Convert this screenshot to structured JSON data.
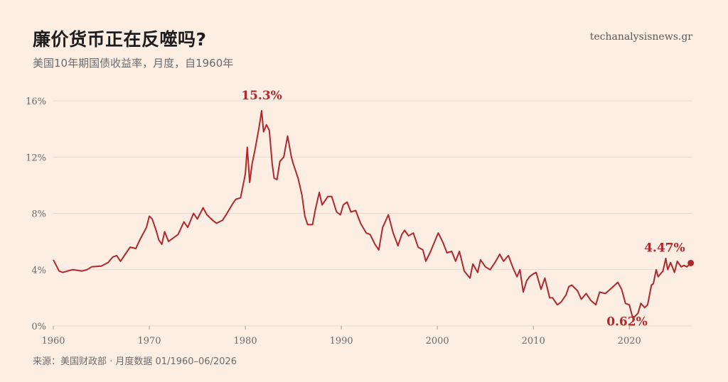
{
  "header": {
    "title": "廉价货币正在反噬吗?",
    "subtitle": "美国10年期国债收益率，月度，自1960年",
    "site": "techanalysisnews.gr"
  },
  "footer": {
    "source": "来源：美国财政部 · 月度数据 01/1960–06/2026"
  },
  "colors": {
    "background": "#fdeee4",
    "line": "#b0282c",
    "grid": "#ead8cc",
    "text": "#6b6b6b"
  },
  "chart_data": {
    "type": "line",
    "title": "廉价货币正在反噬吗?",
    "subtitle": "美国10年期国债收益率，月度，自1960年",
    "xlabel": "",
    "ylabel": "",
    "xlim": [
      1960,
      2026.5
    ],
    "ylim": [
      0,
      16
    ],
    "x_ticks": [
      1960,
      1970,
      1980,
      1990,
      2000,
      2010,
      2020
    ],
    "y_ticks": [
      0,
      4,
      8,
      12,
      16
    ],
    "y_tick_labels": [
      "0%",
      "4%",
      "8%",
      "12%",
      "16%"
    ],
    "grid": true,
    "series": [
      {
        "points": [
          [
            1960.0,
            4.7
          ],
          [
            1960.3,
            4.3
          ],
          [
            1960.6,
            3.9
          ],
          [
            1961.0,
            3.8
          ],
          [
            1961.5,
            3.9
          ],
          [
            1962.0,
            4.0
          ],
          [
            1962.5,
            3.95
          ],
          [
            1963.0,
            3.9
          ],
          [
            1963.5,
            4.0
          ],
          [
            1964.0,
            4.2
          ],
          [
            1965.0,
            4.25
          ],
          [
            1965.7,
            4.5
          ],
          [
            1966.2,
            4.9
          ],
          [
            1966.6,
            5.0
          ],
          [
            1967.0,
            4.6
          ],
          [
            1967.6,
            5.2
          ],
          [
            1968.0,
            5.6
          ],
          [
            1968.6,
            5.5
          ],
          [
            1969.0,
            6.1
          ],
          [
            1969.7,
            7.0
          ],
          [
            1970.0,
            7.8
          ],
          [
            1970.3,
            7.6
          ],
          [
            1970.7,
            6.8
          ],
          [
            1971.0,
            6.1
          ],
          [
            1971.3,
            5.8
          ],
          [
            1971.6,
            6.7
          ],
          [
            1972.0,
            6.0
          ],
          [
            1972.6,
            6.3
          ],
          [
            1973.0,
            6.5
          ],
          [
            1973.6,
            7.4
          ],
          [
            1974.0,
            7.0
          ],
          [
            1974.6,
            8.0
          ],
          [
            1975.0,
            7.6
          ],
          [
            1975.6,
            8.4
          ],
          [
            1976.0,
            7.9
          ],
          [
            1976.6,
            7.5
          ],
          [
            1977.0,
            7.3
          ],
          [
            1977.6,
            7.5
          ],
          [
            1978.0,
            7.9
          ],
          [
            1978.6,
            8.6
          ],
          [
            1979.0,
            9.0
          ],
          [
            1979.5,
            9.1
          ],
          [
            1980.0,
            10.8
          ],
          [
            1980.2,
            12.7
          ],
          [
            1980.45,
            10.2
          ],
          [
            1980.7,
            11.5
          ],
          [
            1981.0,
            12.5
          ],
          [
            1981.4,
            14.0
          ],
          [
            1981.7,
            15.3
          ],
          [
            1981.9,
            13.8
          ],
          [
            1982.2,
            14.3
          ],
          [
            1982.5,
            13.9
          ],
          [
            1982.8,
            11.5
          ],
          [
            1983.0,
            10.5
          ],
          [
            1983.3,
            10.4
          ],
          [
            1983.6,
            11.7
          ],
          [
            1984.0,
            12.0
          ],
          [
            1984.4,
            13.5
          ],
          [
            1984.8,
            12.0
          ],
          [
            1985.0,
            11.5
          ],
          [
            1985.5,
            10.5
          ],
          [
            1985.9,
            9.3
          ],
          [
            1986.2,
            7.8
          ],
          [
            1986.5,
            7.2
          ],
          [
            1987.0,
            7.2
          ],
          [
            1987.3,
            8.3
          ],
          [
            1987.7,
            9.5
          ],
          [
            1988.0,
            8.6
          ],
          [
            1988.6,
            9.2
          ],
          [
            1989.0,
            9.2
          ],
          [
            1989.5,
            8.1
          ],
          [
            1989.9,
            7.9
          ],
          [
            1990.2,
            8.6
          ],
          [
            1990.6,
            8.8
          ],
          [
            1991.0,
            8.1
          ],
          [
            1991.5,
            8.2
          ],
          [
            1992.0,
            7.3
          ],
          [
            1992.6,
            6.6
          ],
          [
            1993.0,
            6.5
          ],
          [
            1993.5,
            5.8
          ],
          [
            1993.9,
            5.4
          ],
          [
            1994.3,
            7.0
          ],
          [
            1994.9,
            7.9
          ],
          [
            1995.4,
            6.6
          ],
          [
            1995.9,
            5.7
          ],
          [
            1996.3,
            6.5
          ],
          [
            1996.6,
            6.8
          ],
          [
            1997.0,
            6.4
          ],
          [
            1997.5,
            6.6
          ],
          [
            1998.0,
            5.6
          ],
          [
            1998.5,
            5.4
          ],
          [
            1998.8,
            4.6
          ],
          [
            1999.3,
            5.3
          ],
          [
            1999.9,
            6.3
          ],
          [
            2000.1,
            6.6
          ],
          [
            2000.6,
            5.9
          ],
          [
            2001.0,
            5.2
          ],
          [
            2001.5,
            5.3
          ],
          [
            2001.9,
            4.6
          ],
          [
            2002.3,
            5.3
          ],
          [
            2002.8,
            3.9
          ],
          [
            2003.4,
            3.4
          ],
          [
            2003.7,
            4.4
          ],
          [
            2004.2,
            3.8
          ],
          [
            2004.5,
            4.7
          ],
          [
            2005.0,
            4.2
          ],
          [
            2005.5,
            4.0
          ],
          [
            2006.0,
            4.5
          ],
          [
            2006.5,
            5.1
          ],
          [
            2006.9,
            4.6
          ],
          [
            2007.4,
            5.0
          ],
          [
            2007.9,
            4.1
          ],
          [
            2008.3,
            3.5
          ],
          [
            2008.6,
            4.0
          ],
          [
            2008.95,
            2.4
          ],
          [
            2009.3,
            3.2
          ],
          [
            2009.6,
            3.5
          ],
          [
            2010.0,
            3.7
          ],
          [
            2010.3,
            3.8
          ],
          [
            2010.8,
            2.6
          ],
          [
            2011.2,
            3.4
          ],
          [
            2011.7,
            2.0
          ],
          [
            2012.0,
            2.0
          ],
          [
            2012.5,
            1.5
          ],
          [
            2012.9,
            1.7
          ],
          [
            2013.4,
            2.2
          ],
          [
            2013.7,
            2.8
          ],
          [
            2014.0,
            2.9
          ],
          [
            2014.6,
            2.5
          ],
          [
            2015.0,
            1.9
          ],
          [
            2015.5,
            2.3
          ],
          [
            2016.0,
            1.8
          ],
          [
            2016.5,
            1.5
          ],
          [
            2016.9,
            2.4
          ],
          [
            2017.5,
            2.3
          ],
          [
            2018.0,
            2.6
          ],
          [
            2018.8,
            3.1
          ],
          [
            2019.2,
            2.6
          ],
          [
            2019.6,
            1.6
          ],
          [
            2020.0,
            1.5
          ],
          [
            2020.3,
            0.7
          ],
          [
            2020.5,
            0.62
          ],
          [
            2020.9,
            0.9
          ],
          [
            2021.2,
            1.6
          ],
          [
            2021.6,
            1.3
          ],
          [
            2021.9,
            1.5
          ],
          [
            2022.3,
            2.9
          ],
          [
            2022.5,
            3.0
          ],
          [
            2022.8,
            4.0
          ],
          [
            2023.0,
            3.5
          ],
          [
            2023.5,
            3.9
          ],
          [
            2023.8,
            4.8
          ],
          [
            2024.0,
            4.0
          ],
          [
            2024.3,
            4.5
          ],
          [
            2024.7,
            3.8
          ],
          [
            2025.0,
            4.6
          ],
          [
            2025.4,
            4.2
          ],
          [
            2025.7,
            4.3
          ],
          [
            2026.0,
            4.2
          ],
          [
            2026.4,
            4.47
          ]
        ]
      }
    ],
    "annotations": [
      {
        "text": "15.3%",
        "x": 1981.7,
        "y": 15.3
      },
      {
        "text": "0.62%",
        "x": 2020.5,
        "y": 0.62
      },
      {
        "text": "4.47%",
        "x": 2026.4,
        "y": 4.47
      }
    ]
  }
}
